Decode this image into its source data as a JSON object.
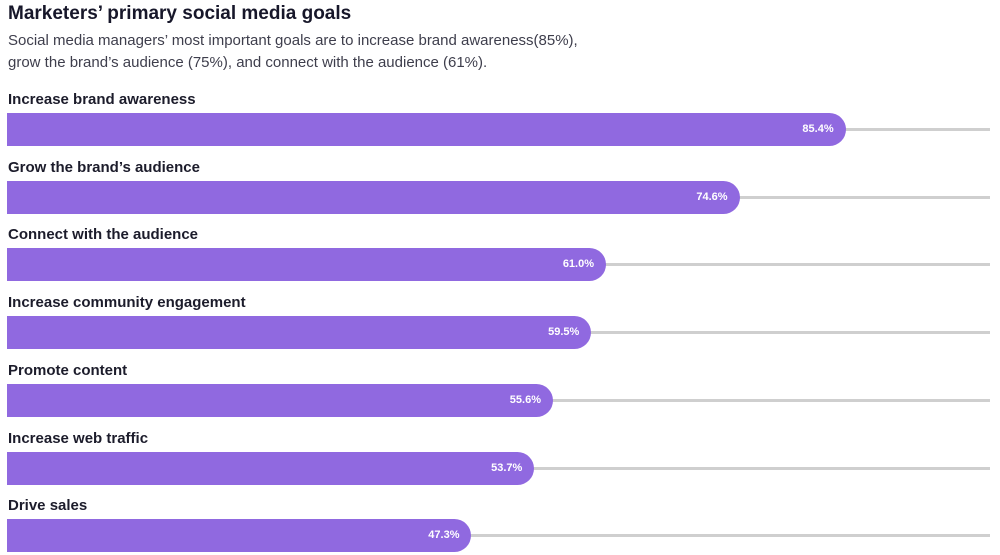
{
  "chart_data": {
    "type": "bar",
    "orientation": "horizontal",
    "title": "Marketers’ primary social media goals",
    "subtitle_lines": [
      "Social media managers’ most important goals are to increase brand awareness(85%),",
      "grow the brand’s audience (75%), and connect with the audience (61%)."
    ],
    "categories": [
      "Increase brand awareness",
      "Grow the brand’s audience",
      "Connect with the audience",
      "Increase community engagement",
      "Promote content",
      "Increase web traffic",
      "Drive sales"
    ],
    "values": [
      85.4,
      74.6,
      61.0,
      59.5,
      55.6,
      53.7,
      47.3
    ],
    "value_labels": [
      "85.4%",
      "74.6%",
      "61.0%",
      "59.5%",
      "55.6%",
      "53.7%",
      "47.3%"
    ],
    "xlim": [
      0,
      100
    ],
    "unit": "%",
    "bar_color": "#9069e0",
    "track_color": "#cfcfcf"
  }
}
